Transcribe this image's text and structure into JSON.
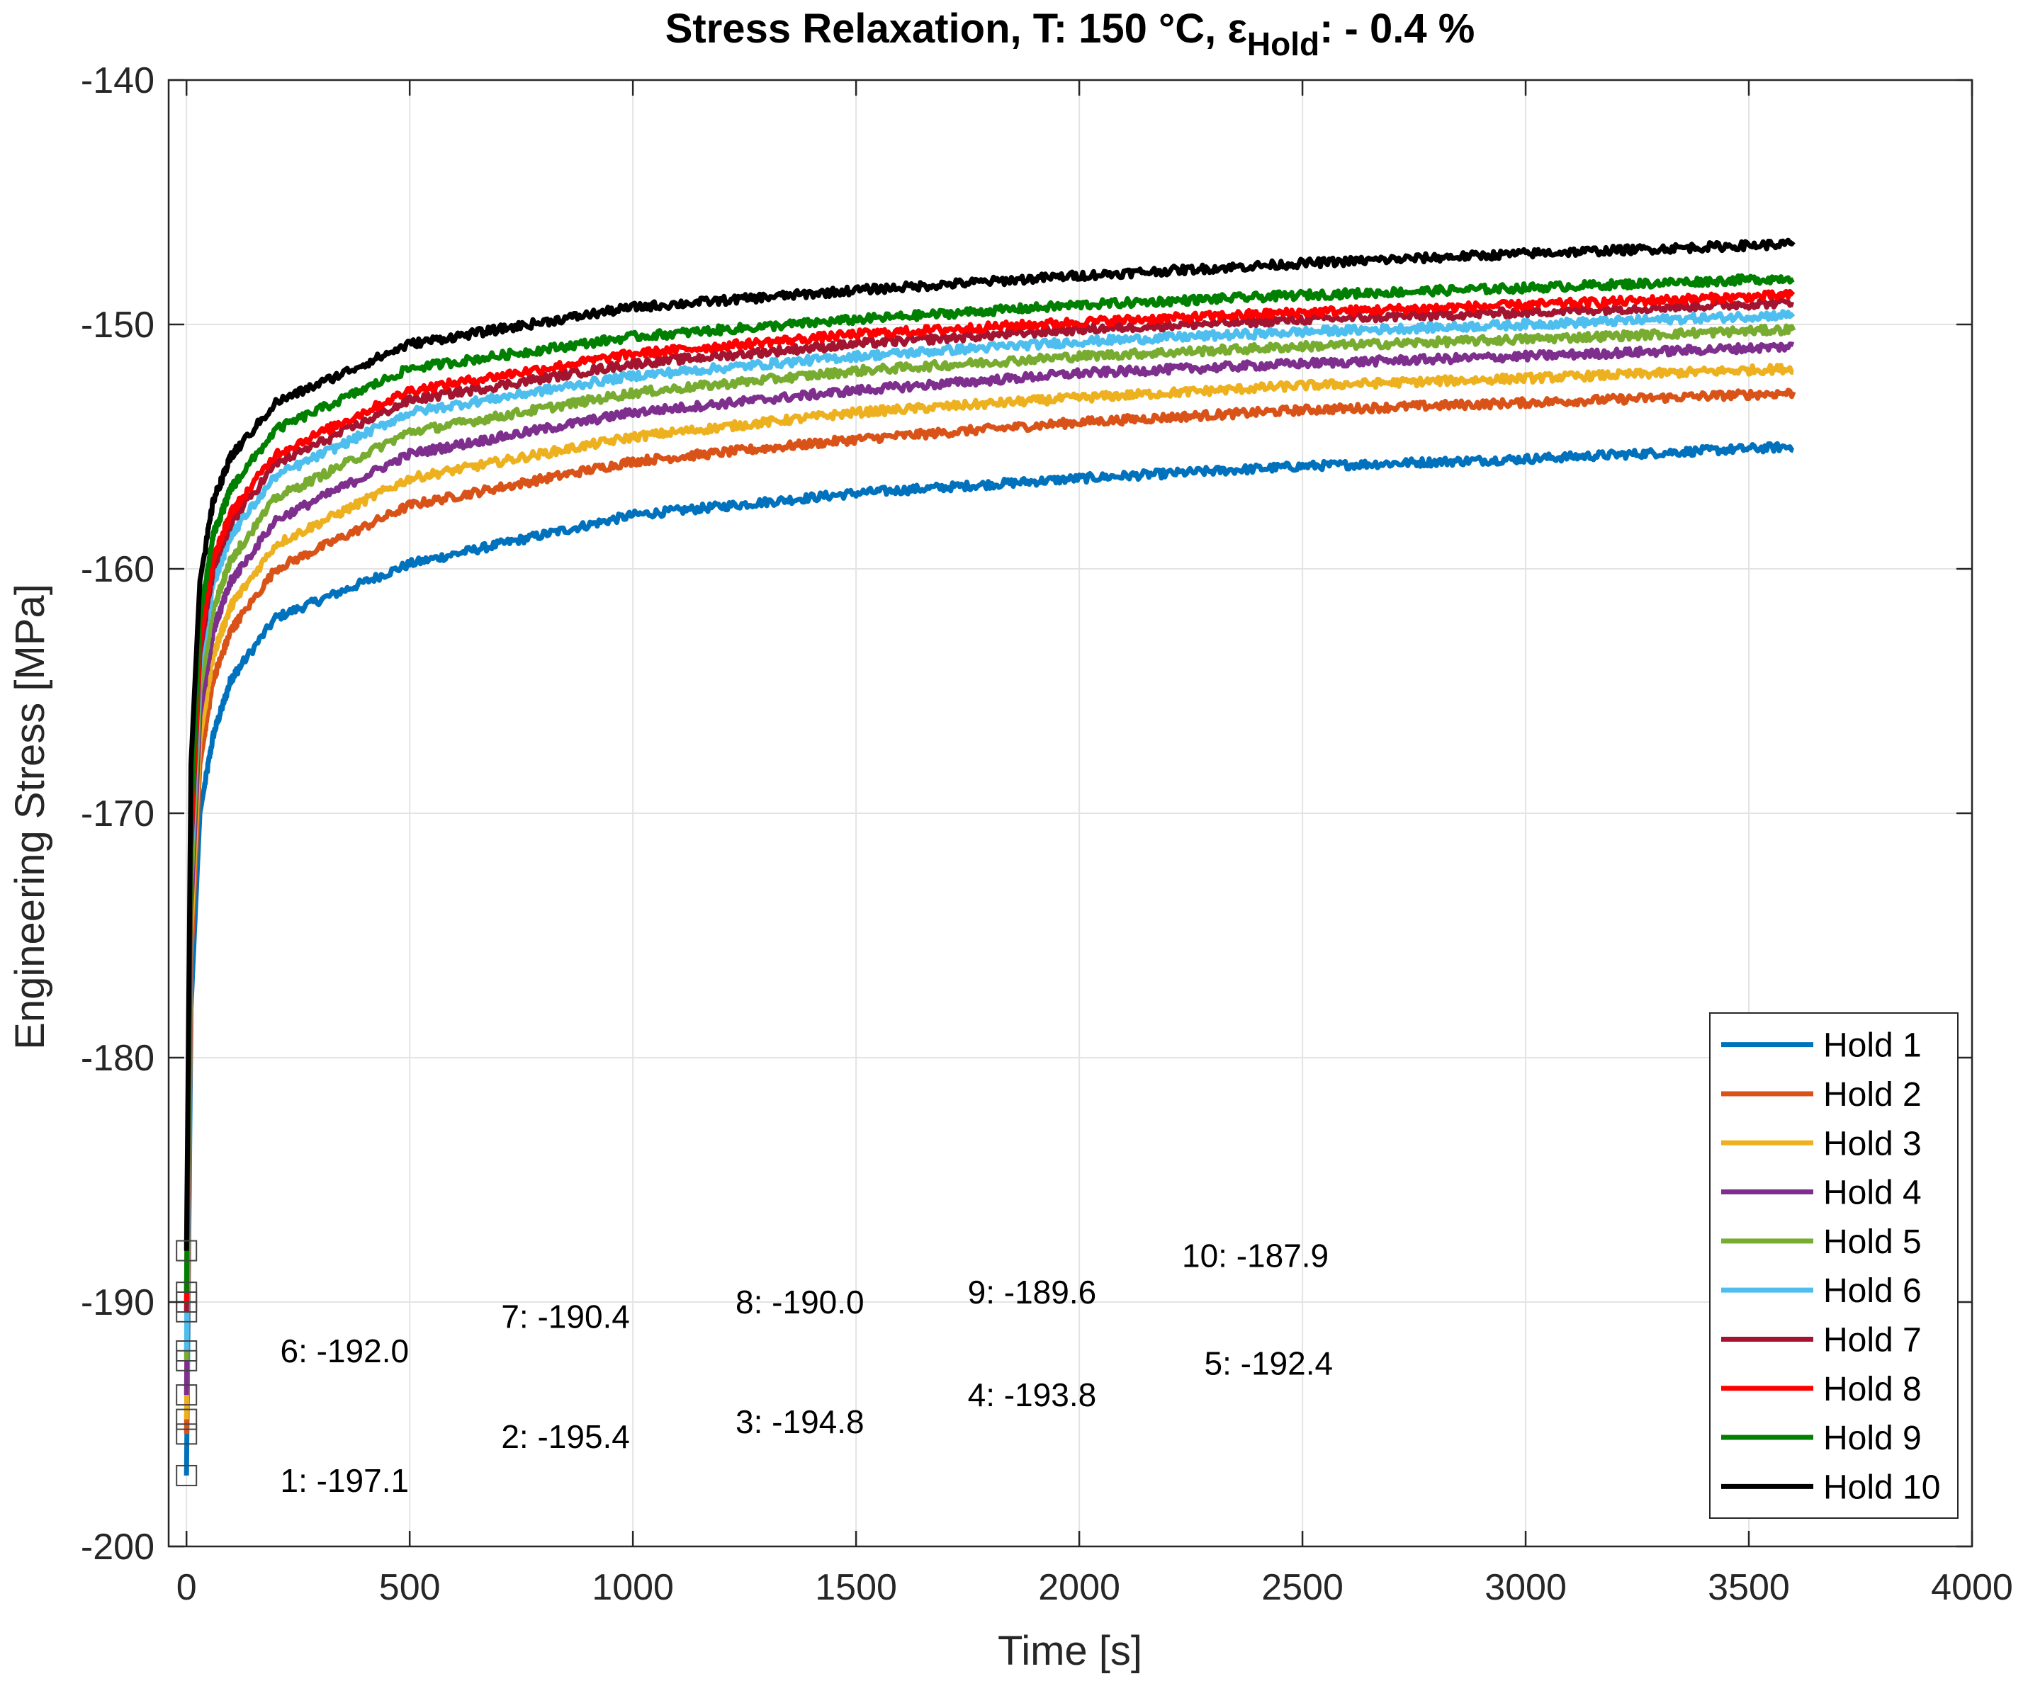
{
  "chart_data": {
    "type": "line",
    "title": "Stress Relaxation, T: 150 °C, ",
    "title_epsilon": "ε",
    "title_subscript": "Hold",
    "title_tail": ": - 0.4 %",
    "xlabel": "Time [s]",
    "ylabel": "Engineering Stress [MPa]",
    "xlim": [
      -40,
      4000
    ],
    "ylim": [
      -200,
      -140
    ],
    "xticks": [
      0,
      500,
      1000,
      1500,
      2000,
      2500,
      3000,
      3500,
      4000
    ],
    "xtick_labels": [
      "0",
      "500",
      "1000",
      "1500",
      "2000",
      "2500",
      "3000",
      "3500",
      "4000"
    ],
    "yticks": [
      -200,
      -190,
      -180,
      -170,
      -160,
      -150,
      -140
    ],
    "ytick_labels": [
      "-200",
      "-190",
      "-180",
      "-170",
      "-160",
      "-150",
      "-140"
    ],
    "grid": true,
    "legend_position": "bottom-right",
    "hold_end_time": 3600,
    "series": [
      {
        "name": "Hold 1",
        "color": "#0072BD",
        "start": -197.1,
        "end": -155.0,
        "t": [
          0,
          10,
          30,
          60,
          100,
          200,
          500,
          1000,
          1500,
          2000,
          2500,
          3000,
          3600
        ],
        "y": [
          -197.1,
          -178.0,
          -170.0,
          -166.8,
          -164.5,
          -162.0,
          -159.8,
          -157.8,
          -156.9,
          -156.3,
          -155.8,
          -155.5,
          -155.0
        ]
      },
      {
        "name": "Hold 2",
        "color": "#D95319",
        "start": -195.4,
        "end": -152.8,
        "t": [
          0,
          10,
          30,
          60,
          100,
          200,
          500,
          1000,
          1500,
          2000,
          2500,
          3000,
          3600
        ],
        "y": [
          -195.4,
          -176.0,
          -168.0,
          -164.5,
          -162.5,
          -160.0,
          -157.4,
          -155.6,
          -154.7,
          -154.0,
          -153.5,
          -153.2,
          -152.8
        ]
      },
      {
        "name": "Hold 3",
        "color": "#EDB120",
        "start": -194.8,
        "end": -151.8,
        "t": [
          0,
          10,
          30,
          60,
          100,
          200,
          500,
          1000,
          1500,
          2000,
          2500,
          3000,
          3600
        ],
        "y": [
          -194.8,
          -175.0,
          -167.0,
          -163.5,
          -161.5,
          -159.0,
          -156.3,
          -154.6,
          -153.6,
          -153.0,
          -152.5,
          -152.2,
          -151.8
        ]
      },
      {
        "name": "Hold 4",
        "color": "#7E2F8E",
        "start": -193.8,
        "end": -150.9,
        "t": [
          0,
          10,
          30,
          60,
          100,
          200,
          500,
          1000,
          1500,
          2000,
          2500,
          3000,
          3600
        ],
        "y": [
          -193.8,
          -174.0,
          -166.0,
          -162.5,
          -160.5,
          -158.0,
          -155.3,
          -153.6,
          -152.7,
          -152.0,
          -151.6,
          -151.3,
          -150.9
        ]
      },
      {
        "name": "Hold 5",
        "color": "#77AC30",
        "start": -192.4,
        "end": -150.2,
        "t": [
          0,
          10,
          30,
          60,
          100,
          200,
          500,
          1000,
          1500,
          2000,
          2500,
          3000,
          3600
        ],
        "y": [
          -192.4,
          -173.0,
          -165.0,
          -161.6,
          -159.6,
          -157.1,
          -154.4,
          -152.8,
          -151.9,
          -151.3,
          -150.9,
          -150.6,
          -150.2
        ]
      },
      {
        "name": "Hold 6",
        "color": "#4DBEEE",
        "start": -192.0,
        "end": -149.6,
        "t": [
          0,
          10,
          30,
          60,
          100,
          200,
          500,
          1000,
          1500,
          2000,
          2500,
          3000,
          3600
        ],
        "y": [
          -192.0,
          -172.0,
          -164.0,
          -160.6,
          -158.6,
          -156.2,
          -153.6,
          -152.1,
          -151.3,
          -150.7,
          -150.3,
          -150.0,
          -149.6
        ]
      },
      {
        "name": "Hold 7",
        "color": "#A2142F",
        "start": -190.4,
        "end": -149.1,
        "t": [
          0,
          10,
          30,
          60,
          100,
          200,
          500,
          1000,
          1500,
          2000,
          2500,
          3000,
          3600
        ],
        "y": [
          -190.4,
          -171.5,
          -163.5,
          -160.0,
          -158.1,
          -155.7,
          -153.1,
          -151.6,
          -150.8,
          -150.2,
          -149.8,
          -149.5,
          -149.1
        ]
      },
      {
        "name": "Hold 8",
        "color": "#FF0000",
        "start": -190.0,
        "end": -148.8,
        "t": [
          0,
          10,
          30,
          60,
          100,
          200,
          500,
          1000,
          1500,
          2000,
          2500,
          3000,
          3600
        ],
        "y": [
          -190.0,
          -171.0,
          -163.0,
          -159.6,
          -157.7,
          -155.3,
          -152.7,
          -151.2,
          -150.4,
          -149.9,
          -149.5,
          -149.2,
          -148.8
        ]
      },
      {
        "name": "Hold 9",
        "color": "#008000",
        "start": -189.6,
        "end": -148.1,
        "t": [
          0,
          10,
          30,
          60,
          100,
          200,
          500,
          1000,
          1500,
          2000,
          2500,
          3000,
          3600
        ],
        "y": [
          -189.6,
          -170.0,
          -162.0,
          -158.6,
          -156.7,
          -154.3,
          -151.8,
          -150.5,
          -149.8,
          -149.2,
          -148.8,
          -148.5,
          -148.1
        ]
      },
      {
        "name": "Hold 10",
        "color": "#000000",
        "start": -187.9,
        "end": -146.7,
        "t": [
          0,
          10,
          30,
          60,
          100,
          200,
          500,
          1000,
          1500,
          2000,
          2500,
          3000,
          3600
        ],
        "y": [
          -187.9,
          -168.0,
          -160.5,
          -157.2,
          -155.4,
          -153.2,
          -150.8,
          -149.3,
          -148.6,
          -148.0,
          -147.5,
          -147.1,
          -146.7
        ]
      }
    ],
    "annotations": [
      {
        "text": "1: -197.1",
        "x": 210,
        "y": -197.3
      },
      {
        "text": "2: -195.4",
        "x": 705,
        "y": -195.5
      },
      {
        "text": "3: -194.8",
        "x": 1230,
        "y": -194.9
      },
      {
        "text": "4: -193.8",
        "x": 1750,
        "y": -193.8
      },
      {
        "text": "5: -192.4",
        "x": 2280,
        "y": -192.5
      },
      {
        "text": "6: -192.0",
        "x": 210,
        "y": -192.0
      },
      {
        "text": "7: -190.4",
        "x": 705,
        "y": -190.6
      },
      {
        "text": "8: -190.0",
        "x": 1230,
        "y": -190.0
      },
      {
        "text": "9: -189.6",
        "x": 1750,
        "y": -189.6
      },
      {
        "text": "10: -187.9",
        "x": 2230,
        "y": -188.1
      }
    ]
  }
}
